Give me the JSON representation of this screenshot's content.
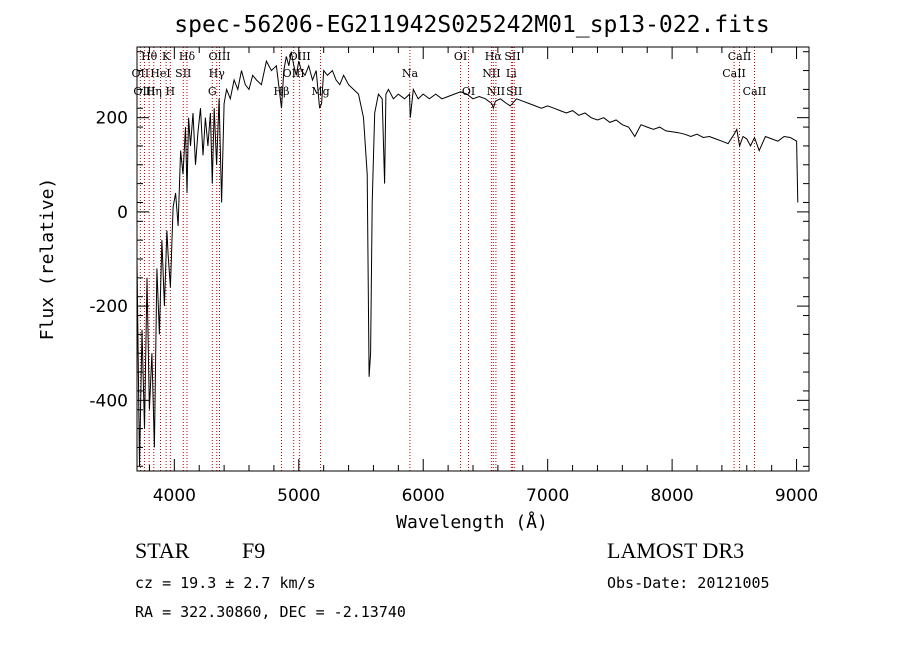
{
  "chart_data": {
    "type": "line",
    "title": "spec-56206-EG211942S025242M01_sp13-022.fits",
    "xlabel": "Wavelength (Å)",
    "ylabel": "Flux (relative)",
    "xlim": [
      3700,
      9100
    ],
    "ylim": [
      -550,
      350
    ],
    "xticks": [
      4000,
      5000,
      6000,
      7000,
      8000,
      9000
    ],
    "yticks": [
      -400,
      -200,
      0,
      200
    ],
    "grid": false,
    "series": [
      {
        "name": "flux",
        "x": [
          3700,
          3720,
          3740,
          3760,
          3780,
          3800,
          3820,
          3840,
          3860,
          3880,
          3900,
          3920,
          3940,
          3950,
          3968,
          3990,
          4010,
          4030,
          4050,
          4070,
          4090,
          4102,
          4115,
          4130,
          4150,
          4170,
          4190,
          4210,
          4230,
          4250,
          4270,
          4290,
          4305,
          4320,
          4340,
          4360,
          4380,
          4400,
          4420,
          4450,
          4480,
          4510,
          4540,
          4570,
          4600,
          4630,
          4660,
          4700,
          4740,
          4780,
          4820,
          4861,
          4880,
          4900,
          4920,
          4940,
          4960,
          4980,
          5000,
          5020,
          5050,
          5080,
          5110,
          5140,
          5167,
          5183,
          5200,
          5230,
          5270,
          5300,
          5330,
          5360,
          5400,
          5440,
          5480,
          5520,
          5550,
          5565,
          5577,
          5590,
          5610,
          5640,
          5670,
          5690,
          5700,
          5720,
          5760,
          5800,
          5850,
          5890,
          5896,
          5920,
          5960,
          6000,
          6050,
          6100,
          6150,
          6200,
          6250,
          6300,
          6350,
          6400,
          6450,
          6500,
          6550,
          6563,
          6580,
          6620,
          6670,
          6700,
          6750,
          6800,
          6850,
          6900,
          6950,
          7000,
          7050,
          7100,
          7150,
          7200,
          7250,
          7300,
          7350,
          7400,
          7450,
          7500,
          7550,
          7600,
          7650,
          7700,
          7750,
          7800,
          7850,
          7900,
          7950,
          8000,
          8050,
          8100,
          8150,
          8200,
          8250,
          8300,
          8350,
          8400,
          8450,
          8498,
          8520,
          8542,
          8570,
          8600,
          8630,
          8662,
          8700,
          8750,
          8800,
          8850,
          8900,
          8950,
          9000,
          9010
        ],
        "y": [
          -100,
          -540,
          -250,
          -460,
          -140,
          -420,
          -300,
          -500,
          -120,
          -260,
          -60,
          -200,
          -40,
          -90,
          -160,
          10,
          40,
          -30,
          130,
          80,
          180,
          40,
          200,
          140,
          210,
          100,
          170,
          220,
          120,
          200,
          140,
          210,
          60,
          220,
          100,
          240,
          20,
          230,
          260,
          240,
          280,
          260,
          300,
          270,
          260,
          290,
          280,
          270,
          320,
          300,
          310,
          220,
          300,
          330,
          310,
          340,
          310,
          290,
          320,
          300,
          290,
          310,
          280,
          300,
          220,
          230,
          300,
          290,
          300,
          280,
          270,
          290,
          270,
          260,
          250,
          200,
          80,
          -350,
          -300,
          20,
          210,
          250,
          240,
          60,
          250,
          260,
          240,
          250,
          240,
          250,
          200,
          260,
          240,
          250,
          240,
          250,
          240,
          245,
          250,
          255,
          250,
          240,
          245,
          240,
          230,
          220,
          235,
          240,
          230,
          225,
          240,
          235,
          230,
          225,
          220,
          225,
          220,
          215,
          210,
          215,
          205,
          210,
          200,
          195,
          200,
          190,
          195,
          185,
          180,
          160,
          185,
          180,
          175,
          180,
          172,
          170,
          168,
          165,
          160,
          165,
          158,
          160,
          155,
          150,
          145,
          165,
          175,
          140,
          160,
          155,
          140,
          158,
          130,
          160,
          155,
          150,
          160,
          158,
          150,
          20
        ]
      }
    ],
    "lines": [
      {
        "label": "Hθ",
        "wl": 3798,
        "row": 1
      },
      {
        "label": "OII",
        "wl": 3727,
        "row": 2
      },
      {
        "label": "OIII",
        "wl": 3760,
        "row": 3
      },
      {
        "label": "K",
        "wl": 3934,
        "row": 1
      },
      {
        "label": "HeI",
        "wl": 3889,
        "row": 2
      },
      {
        "label": "Hη",
        "wl": 3835,
        "row": 3
      },
      {
        "label": "H",
        "wl": 3968,
        "row": 3
      },
      {
        "label": "Hδ",
        "wl": 4102,
        "row": 1
      },
      {
        "label": "SII",
        "wl": 4072,
        "row": 2
      },
      {
        "label": "OIII",
        "wl": 4363,
        "row": 1
      },
      {
        "label": "Hγ",
        "wl": 4341,
        "row": 2
      },
      {
        "label": "G",
        "wl": 4305,
        "row": 3
      },
      {
        "label": "Hβ",
        "wl": 4861,
        "row": 3
      },
      {
        "label": "OIII",
        "wl": 5007,
        "row": 1
      },
      {
        "label": "OIII",
        "wl": 4959,
        "row": 2
      },
      {
        "label": "Mg",
        "wl": 5175,
        "row": 3
      },
      {
        "label": "Na",
        "wl": 5893,
        "row": 2
      },
      {
        "label": "OI",
        "wl": 6300,
        "row": 1
      },
      {
        "label": "OI",
        "wl": 6364,
        "row": 3
      },
      {
        "label": "Hα",
        "wl": 6563,
        "row": 1
      },
      {
        "label": "SII",
        "wl": 6717,
        "row": 1
      },
      {
        "label": "NII",
        "wl": 6548,
        "row": 2
      },
      {
        "label": "Li",
        "wl": 6708,
        "row": 2
      },
      {
        "label": "NII",
        "wl": 6584,
        "row": 3
      },
      {
        "label": "SII",
        "wl": 6731,
        "row": 3
      },
      {
        "label": "CaII",
        "wl": 8542,
        "row": 1
      },
      {
        "label": "CaII",
        "wl": 8498,
        "row": 2
      },
      {
        "label": "CaII",
        "wl": 8662,
        "row": 3
      }
    ]
  },
  "info": {
    "class": "STAR",
    "subclass": "F9",
    "cz": "cz = 19.3 ± 2.7 km/s",
    "radec": "RA = 322.30860, DEC =  -2.13740",
    "survey": "LAMOST DR3",
    "obsdate": "Obs-Date: 20121005"
  },
  "colors": {
    "line_marker": "#c00000",
    "spectrum": "#000000"
  }
}
